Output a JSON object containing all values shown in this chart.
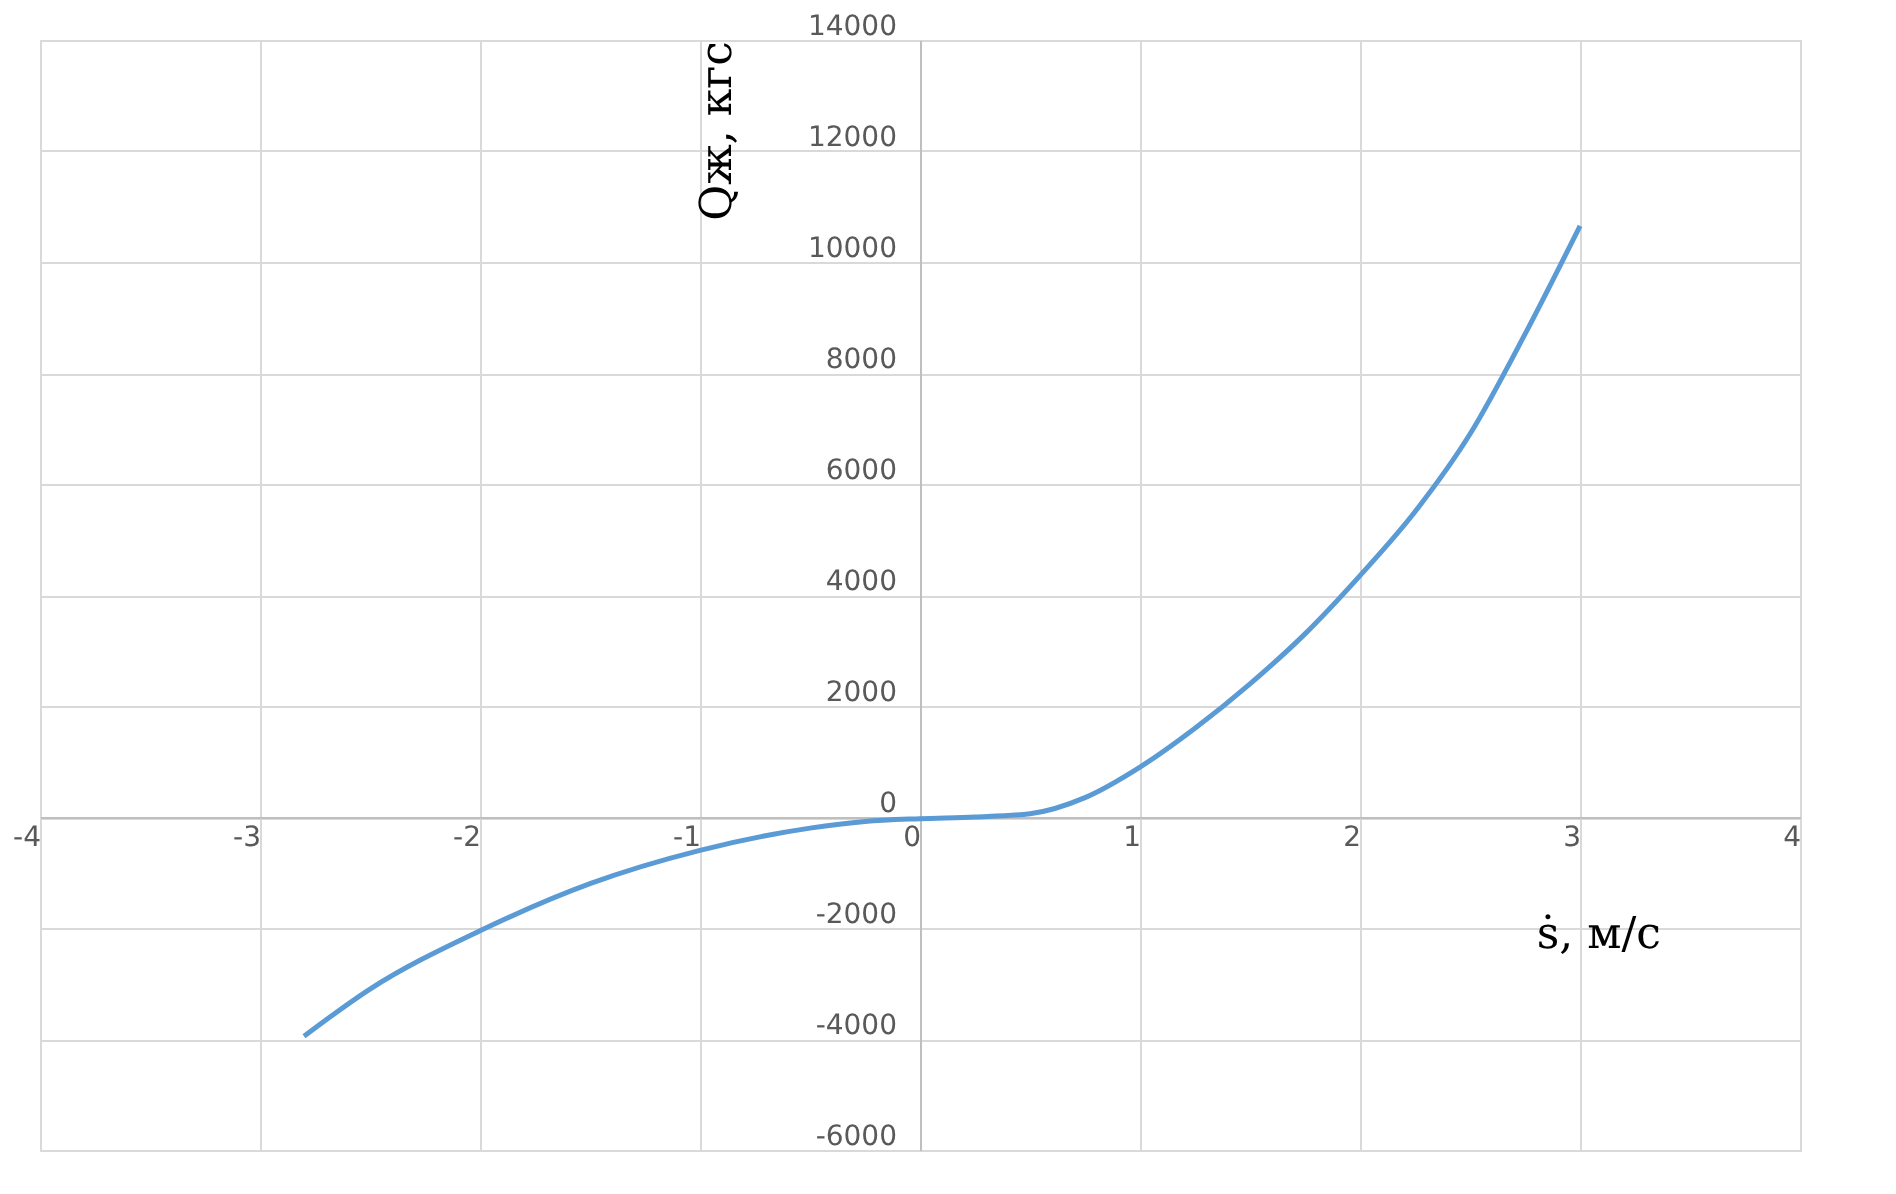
{
  "chart_data": {
    "type": "line",
    "xlabel": "ṡ, м/с",
    "ylabel": "Qж, кгс",
    "x": [
      -2.8,
      -2.5,
      -2,
      -1.5,
      -1,
      -0.5,
      -0.25,
      0,
      0.25,
      0.5,
      0.75,
      1,
      1.25,
      1.5,
      1.75,
      2,
      2.25,
      2.5,
      2.75,
      3
    ],
    "series": [
      {
        "color": "#5b9bd5",
        "values": [
          -3950,
          -3100,
          -2050,
          -1200,
          -600,
          -200,
          -80,
          -30,
          0,
          60,
          350,
          900,
          1600,
          2400,
          3300,
          4350,
          5500,
          6900,
          8700,
          10650
        ]
      }
    ],
    "xlim": [
      -4,
      4
    ],
    "xticks": [
      -4,
      -3,
      -2,
      -1,
      0,
      1,
      2,
      3,
      4
    ],
    "ylim": [
      -6000,
      14000
    ],
    "yticks": [
      -6000,
      -4000,
      -2000,
      0,
      2000,
      4000,
      6000,
      8000,
      10000,
      12000,
      14000
    ],
    "grid": true,
    "marker": "none",
    "line_style": "solid"
  }
}
